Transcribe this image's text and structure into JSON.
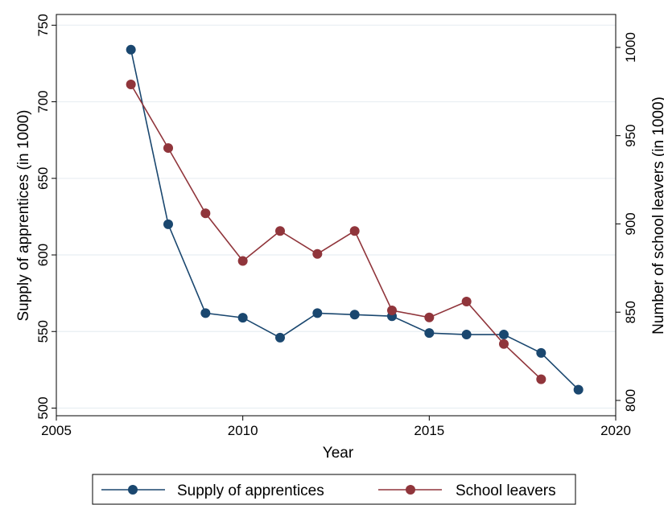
{
  "chart_data": {
    "type": "line",
    "xlabel": "Year",
    "ylabel_left": "Supply of apprentices (in 1000)",
    "ylabel_right": "Number of school leavers (in 1000)",
    "xlim": [
      2005,
      2020
    ],
    "x_ticks": [
      2005,
      2010,
      2015,
      2020
    ],
    "ylim_left": [
      500,
      750
    ],
    "y_ticks_left": [
      500,
      550,
      600,
      650,
      700,
      750
    ],
    "ylim_right": [
      800,
      1000
    ],
    "y_ticks_right": [
      800,
      850,
      900,
      950,
      1000
    ],
    "grid": true,
    "legend_position": "bottom",
    "series": [
      {
        "name": "Supply of apprentices",
        "axis": "left",
        "color": "#1a476f",
        "x": [
          2007,
          2008,
          2009,
          2010,
          2011,
          2012,
          2013,
          2014,
          2015,
          2016,
          2017,
          2018,
          2019
        ],
        "values": [
          734,
          620,
          562,
          559,
          546,
          562,
          561,
          560,
          549,
          548,
          548,
          536,
          512
        ]
      },
      {
        "name": "School leavers",
        "axis": "right",
        "color": "#90353b",
        "x": [
          2007,
          2008,
          2009,
          2010,
          2011,
          2012,
          2013,
          2014,
          2015,
          2016,
          2017,
          2018
        ],
        "values": [
          979,
          943,
          906,
          879,
          896,
          883,
          896,
          851,
          847,
          856,
          832,
          812
        ]
      }
    ]
  }
}
